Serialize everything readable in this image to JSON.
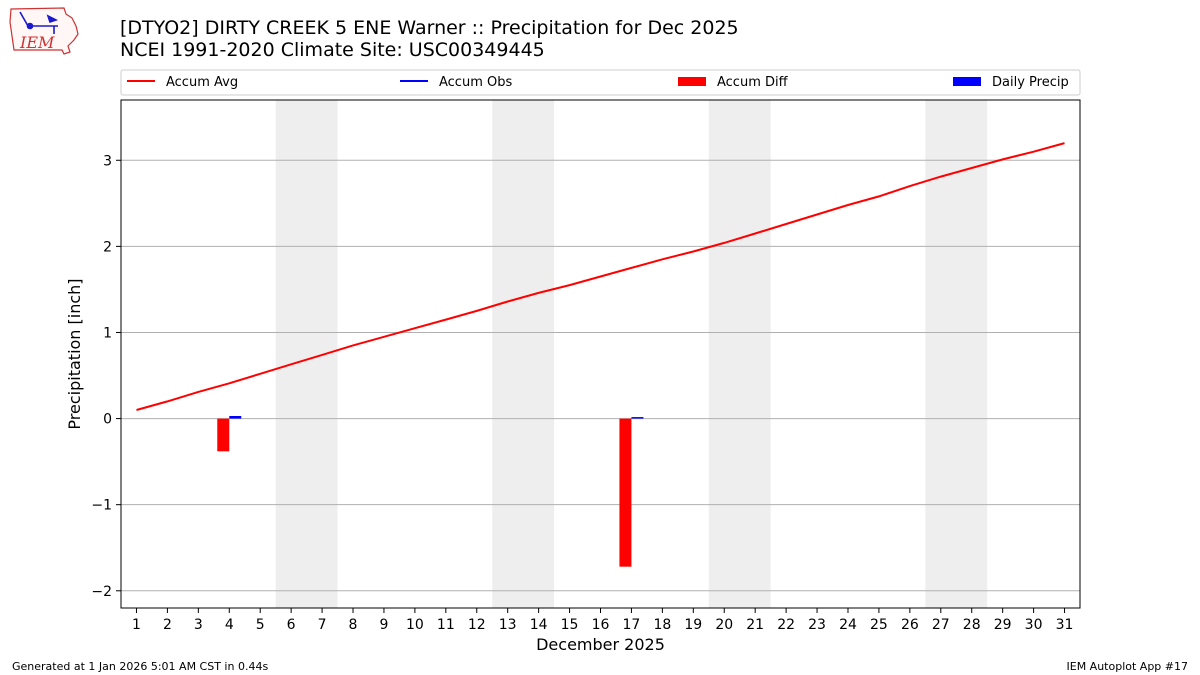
{
  "header": {
    "title": "[DTYO2] DIRTY CREEK 5 ENE Warner :: Precipitation for Dec 2025",
    "subtitle": "NCEI 1991-2020 Climate Site: USC00349445",
    "logo_text": "IEM"
  },
  "footer": {
    "generated": "Generated at 1 Jan 2026 5:01 AM CST in 0.44s",
    "app": "IEM Autoplot App #17"
  },
  "chart_data": {
    "type": "bar",
    "xlabel": "December 2025",
    "ylabel": "Precipitation [inch]",
    "xlim": [
      0.5,
      31.5
    ],
    "ylim": [
      -2.2,
      3.7
    ],
    "grid": "horizontal",
    "legend_placement": "top",
    "x_ticks": [
      1,
      2,
      3,
      4,
      5,
      6,
      7,
      8,
      9,
      10,
      11,
      12,
      13,
      14,
      15,
      16,
      17,
      18,
      19,
      20,
      21,
      22,
      23,
      24,
      25,
      26,
      27,
      28,
      29,
      30,
      31
    ],
    "y_ticks": [
      -2,
      -1,
      0,
      1,
      2,
      3
    ],
    "y_tick_labels": [
      "−2",
      "−1",
      "0",
      "1",
      "2",
      "3"
    ],
    "weekend_spans": [
      [
        5.5,
        7.5
      ],
      [
        12.5,
        14.5
      ],
      [
        19.5,
        21.5
      ],
      [
        26.5,
        28.5
      ]
    ],
    "series": [
      {
        "name": "Accum Avg",
        "kind": "line",
        "color": "#ff0000",
        "x": [
          1,
          2,
          3,
          4,
          5,
          6,
          7,
          8,
          9,
          10,
          11,
          12,
          13,
          14,
          15,
          16,
          17,
          18,
          19,
          20,
          21,
          22,
          23,
          24,
          25,
          26,
          27,
          28,
          29,
          30,
          31
        ],
        "values": [
          0.1,
          0.2,
          0.31,
          0.41,
          0.52,
          0.63,
          0.74,
          0.85,
          0.95,
          1.05,
          1.15,
          1.25,
          1.36,
          1.46,
          1.55,
          1.65,
          1.75,
          1.85,
          1.94,
          2.04,
          2.15,
          2.26,
          2.37,
          2.48,
          2.58,
          2.7,
          2.81,
          2.91,
          3.01,
          3.1,
          3.2
        ]
      },
      {
        "name": "Accum Obs",
        "kind": "line",
        "color": "#0000ff",
        "x": [],
        "values": []
      },
      {
        "name": "Accum Diff",
        "kind": "bar",
        "color": "#ff0000",
        "x": [
          4,
          17
        ],
        "values": [
          -0.38,
          -1.72
        ]
      },
      {
        "name": "Daily Precip",
        "kind": "bar",
        "color": "#0000ff",
        "x": [
          4,
          17
        ],
        "values": [
          0.03,
          0.01
        ]
      }
    ]
  }
}
